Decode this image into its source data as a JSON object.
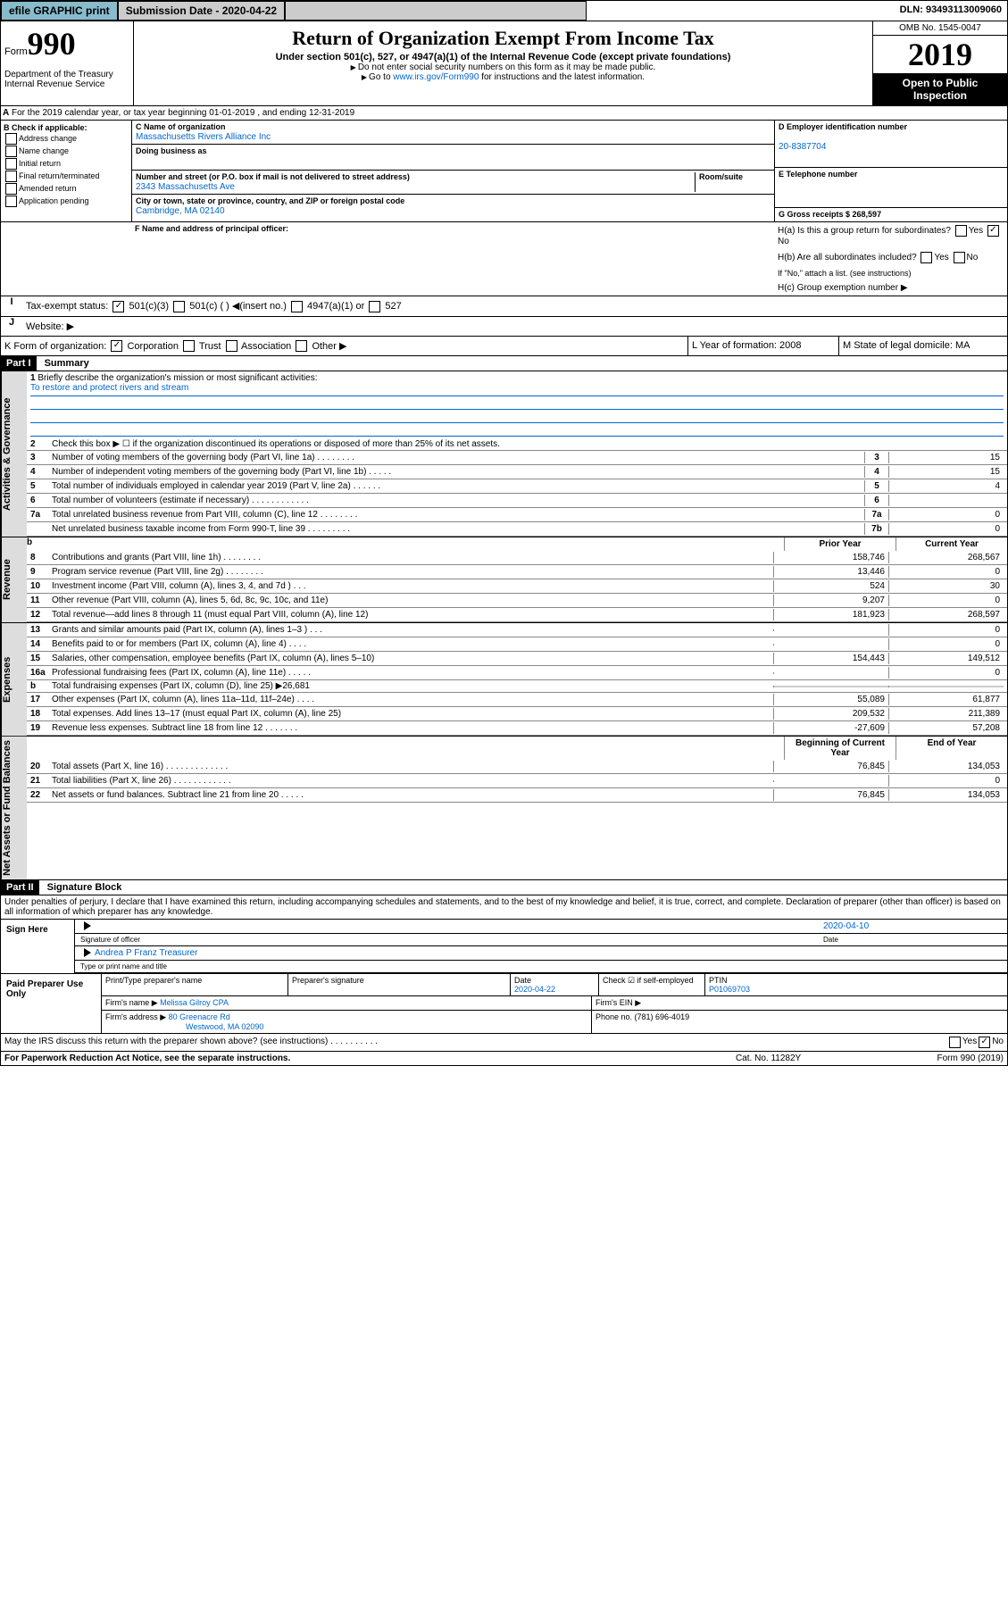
{
  "header": {
    "efile": "efile GRAPHIC print",
    "sub_label": "Submission Date - 2020-04-22",
    "dln": "DLN: 93493113009060"
  },
  "form": {
    "form_word": "Form",
    "form_num": "990",
    "title": "Return of Organization Exempt From Income Tax",
    "subtitle": "Under section 501(c), 527, or 4947(a)(1) of the Internal Revenue Code (except private foundations)",
    "note1": "Do not enter social security numbers on this form as it may be made public.",
    "note2_pre": "Go to ",
    "note2_link": "www.irs.gov/Form990",
    "note2_post": " for instructions and the latest information.",
    "omb": "OMB No. 1545-0047",
    "year": "2019",
    "inspect": "Open to Public Inspection",
    "dept": "Department of the Treasury\nInternal Revenue Service"
  },
  "periodA": "For the 2019 calendar year, or tax year beginning 01-01-2019    , and ending 12-31-2019",
  "B": {
    "hdr": "B Check if applicable:",
    "opts": [
      "Address change",
      "Name change",
      "Initial return",
      "Final return/terminated",
      "Amended return",
      "Application pending"
    ]
  },
  "C": {
    "name_lab": "C Name of organization",
    "name": "Massachusetts Rivers Alliance Inc",
    "dba_lab": "Doing business as",
    "addr_lab": "Number and street (or P.O. box if mail is not delivered to street address)",
    "room_lab": "Room/suite",
    "addr": "2343 Massachusetts Ave",
    "city_lab": "City or town, state or province, country, and ZIP or foreign postal code",
    "city": "Cambridge, MA  02140"
  },
  "D": {
    "lab": "D Employer identification number",
    "val": "20-8387704"
  },
  "E": {
    "lab": "E Telephone number"
  },
  "G": {
    "lab": "G Gross receipts $ 268,597"
  },
  "F": {
    "lab": "F  Name and address of principal officer:"
  },
  "H": {
    "a": "H(a)  Is this a group return for subordinates?",
    "b": "H(b)  Are all subordinates included?",
    "b_note": "If \"No,\" attach a list. (see instructions)",
    "c": "H(c)  Group exemption number ▶"
  },
  "I": {
    "lab": "Tax-exempt status:",
    "c3": "501(c)(3)",
    "c": "501(c) ( ) ◀(insert no.)",
    "a1": "4947(a)(1) or",
    "s527": "527"
  },
  "J": {
    "lab": "Website: ▶"
  },
  "K": {
    "lab": "K Form of organization:",
    "opts": [
      "Corporation",
      "Trust",
      "Association",
      "Other ▶"
    ]
  },
  "L": {
    "lab": "L Year of formation: 2008"
  },
  "M": {
    "lab": "M State of legal domicile: MA"
  },
  "part1": {
    "hdr": "Part I",
    "title": "Summary",
    "l1": "Briefly describe the organization's mission or most significant activities:",
    "mission": "To restore and protect rivers and stream",
    "l2": "Check this box ▶ ☐  if the organization discontinued its operations or disposed of more than 25% of its net assets.",
    "vtabs": [
      "Activities & Governance",
      "Revenue",
      "Expenses",
      "Net Assets or Fund Balances"
    ],
    "gov_lines": [
      {
        "n": "3",
        "t": "Number of voting members of the governing body (Part VI, line 1a)  .  .  .  .  .  .  .  .",
        "b": "3",
        "v": "15"
      },
      {
        "n": "4",
        "t": "Number of independent voting members of the governing body (Part VI, line 1b)  .  .  .  .  .",
        "b": "4",
        "v": "15"
      },
      {
        "n": "5",
        "t": "Total number of individuals employed in calendar year 2019 (Part V, line 2a)  .  .  .  .  .  .",
        "b": "5",
        "v": "4"
      },
      {
        "n": "6",
        "t": "Total number of volunteers (estimate if necessary)  .  .  .  .  .  .  .  .  .  .  .  .",
        "b": "6",
        "v": ""
      },
      {
        "n": "7a",
        "t": "Total unrelated business revenue from Part VIII, column (C), line 12  .  .  .  .  .  .  .  .",
        "b": "7a",
        "v": "0"
      },
      {
        "n": "",
        "t": "Net unrelated business taxable income from Form 990-T, line 39  .  .  .  .  .  .  .  .  .",
        "b": "7b",
        "v": "0"
      }
    ],
    "col_prior": "Prior Year",
    "col_current": "Current Year",
    "rev_lines": [
      {
        "n": "8",
        "t": "Contributions and grants (Part VIII, line 1h)  .  .  .  .  .  .  .  .",
        "p": "158,746",
        "c": "268,567"
      },
      {
        "n": "9",
        "t": "Program service revenue (Part VIII, line 2g)  .  .  .  .  .  .  .  .",
        "p": "13,446",
        "c": "0"
      },
      {
        "n": "10",
        "t": "Investment income (Part VIII, column (A), lines 3, 4, and 7d )  .  .  .",
        "p": "524",
        "c": "30"
      },
      {
        "n": "11",
        "t": "Other revenue (Part VIII, column (A), lines 5, 6d, 8c, 9c, 10c, and 11e)",
        "p": "9,207",
        "c": "0"
      },
      {
        "n": "12",
        "t": "Total revenue—add lines 8 through 11 (must equal Part VIII, column (A), line 12)",
        "p": "181,923",
        "c": "268,597"
      }
    ],
    "exp_lines": [
      {
        "n": "13",
        "t": "Grants and similar amounts paid (Part IX, column (A), lines 1–3 )  .  .  .",
        "p": "",
        "c": "0"
      },
      {
        "n": "14",
        "t": "Benefits paid to or for members (Part IX, column (A), line 4)  .  .  .  .",
        "p": "",
        "c": "0"
      },
      {
        "n": "15",
        "t": "Salaries, other compensation, employee benefits (Part IX, column (A), lines 5–10)",
        "p": "154,443",
        "c": "149,512"
      },
      {
        "n": "16a",
        "t": "Professional fundraising fees (Part IX, column (A), line 11e)  .  .  .  .  .",
        "p": "",
        "c": "0"
      },
      {
        "n": "b",
        "t": "Total fundraising expenses (Part IX, column (D), line 25) ▶26,681",
        "p": "—",
        "c": "—"
      },
      {
        "n": "17",
        "t": "Other expenses (Part IX, column (A), lines 11a–11d, 11f–24e)  .  .  .  .",
        "p": "55,089",
        "c": "61,877"
      },
      {
        "n": "18",
        "t": "Total expenses. Add lines 13–17 (must equal Part IX, column (A), line 25)",
        "p": "209,532",
        "c": "211,389"
      },
      {
        "n": "19",
        "t": "Revenue less expenses. Subtract line 18 from line 12  .  .  .  .  .  .  .",
        "p": "-27,609",
        "c": "57,208"
      }
    ],
    "col_begin": "Beginning of Current Year",
    "col_end": "End of Year",
    "net_lines": [
      {
        "n": "20",
        "t": "Total assets (Part X, line 16)  .  .  .  .  .  .  .  .  .  .  .  .  .",
        "p": "76,845",
        "c": "134,053"
      },
      {
        "n": "21",
        "t": "Total liabilities (Part X, line 26)  .  .  .  .  .  .  .  .  .  .  .  .",
        "p": "",
        "c": "0"
      },
      {
        "n": "22",
        "t": "Net assets or fund balances. Subtract line 21 from line 20  .  .  .  .  .",
        "p": "76,845",
        "c": "134,053"
      }
    ]
  },
  "part2": {
    "hdr": "Part II",
    "title": "Signature Block",
    "decl": "Under penalties of perjury, I declare that I have examined this return, including accompanying schedules and statements, and to the best of my knowledge and belief, it is true, correct, and complete. Declaration of preparer (other than officer) is based on all information of which preparer has any knowledge.",
    "sign_here": "Sign Here",
    "sig_date": "2020-04-10",
    "sig_lab": "Signature of officer",
    "date_lab": "Date",
    "name_title": "Andrea P Franz Treasurer",
    "name_lab": "Type or print name and title",
    "paid": "Paid Preparer Use Only",
    "prep_name_lab": "Print/Type preparer's name",
    "prep_sig_lab": "Preparer's signature",
    "prep_date_lab": "Date",
    "prep_date": "2020-04-22",
    "self_emp": "Check ☑ if self-employed",
    "ptin_lab": "PTIN",
    "ptin": "P01069703",
    "firm_name_lab": "Firm's name    ▶",
    "firm_name": "Melissa Gilroy CPA",
    "firm_ein_lab": "Firm's EIN ▶",
    "firm_addr_lab": "Firm's address ▶",
    "firm_addr": "80 Greenacre Rd",
    "firm_city": "Westwood, MA  02090",
    "phone_lab": "Phone no. (781) 696-4019",
    "discuss": "May the IRS discuss this return with the preparer shown above? (see instructions)  .  .  .  .  .  .  .  .  .  ."
  },
  "footer": {
    "pra": "For Paperwork Reduction Act Notice, see the separate instructions.",
    "cat": "Cat. No. 11282Y",
    "form": "Form 990 (2019)"
  },
  "yes": "Yes",
  "no": "No"
}
